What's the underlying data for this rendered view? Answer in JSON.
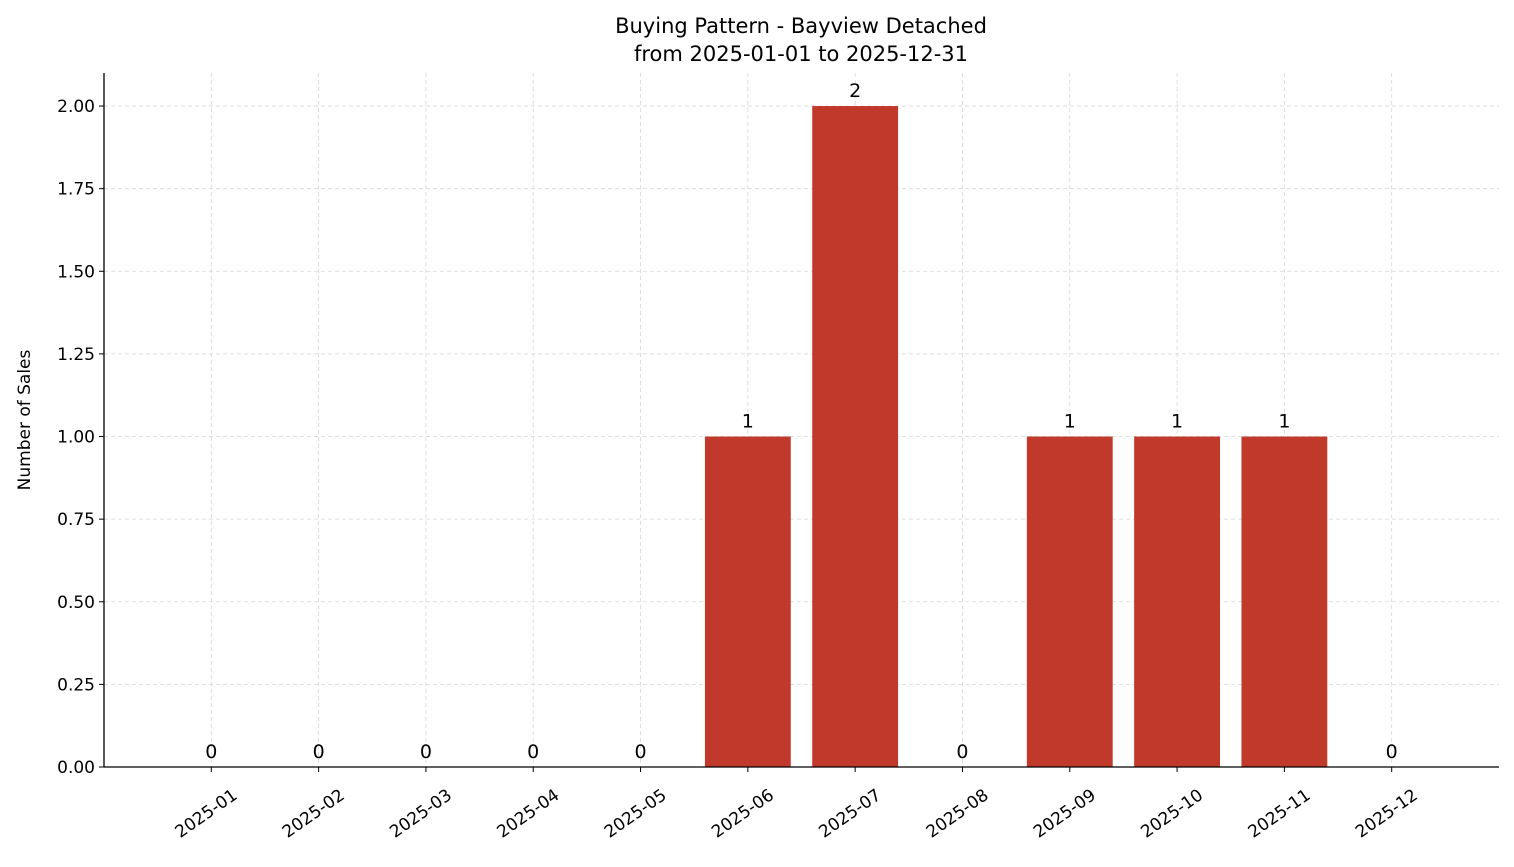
{
  "chart_data": {
    "type": "bar",
    "title": "Buying Pattern - Bayview Detached",
    "subtitle": "from 2025-01-01 to 2025-12-31",
    "xlabel": "",
    "ylabel": "Number of Sales",
    "categories": [
      "2025-01",
      "2025-02",
      "2025-03",
      "2025-04",
      "2025-05",
      "2025-06",
      "2025-07",
      "2025-08",
      "2025-09",
      "2025-10",
      "2025-11",
      "2025-12"
    ],
    "values": [
      0,
      0,
      0,
      0,
      0,
      1,
      2,
      0,
      1,
      1,
      1,
      0
    ],
    "data_labels": [
      "0",
      "0",
      "0",
      "0",
      "0",
      "1",
      "2",
      "0",
      "1",
      "1",
      "1",
      "0"
    ],
    "ylim": [
      0,
      2.1
    ],
    "yticks": [
      0,
      0.25,
      0.5,
      0.75,
      1.0,
      1.25,
      1.5,
      1.75,
      2.0
    ],
    "ytick_labels": [
      "0.00",
      "0.25",
      "0.50",
      "0.75",
      "1.00",
      "1.25",
      "1.50",
      "1.75",
      "2.00"
    ],
    "grid": true,
    "bar_color": "#c0392b"
  }
}
